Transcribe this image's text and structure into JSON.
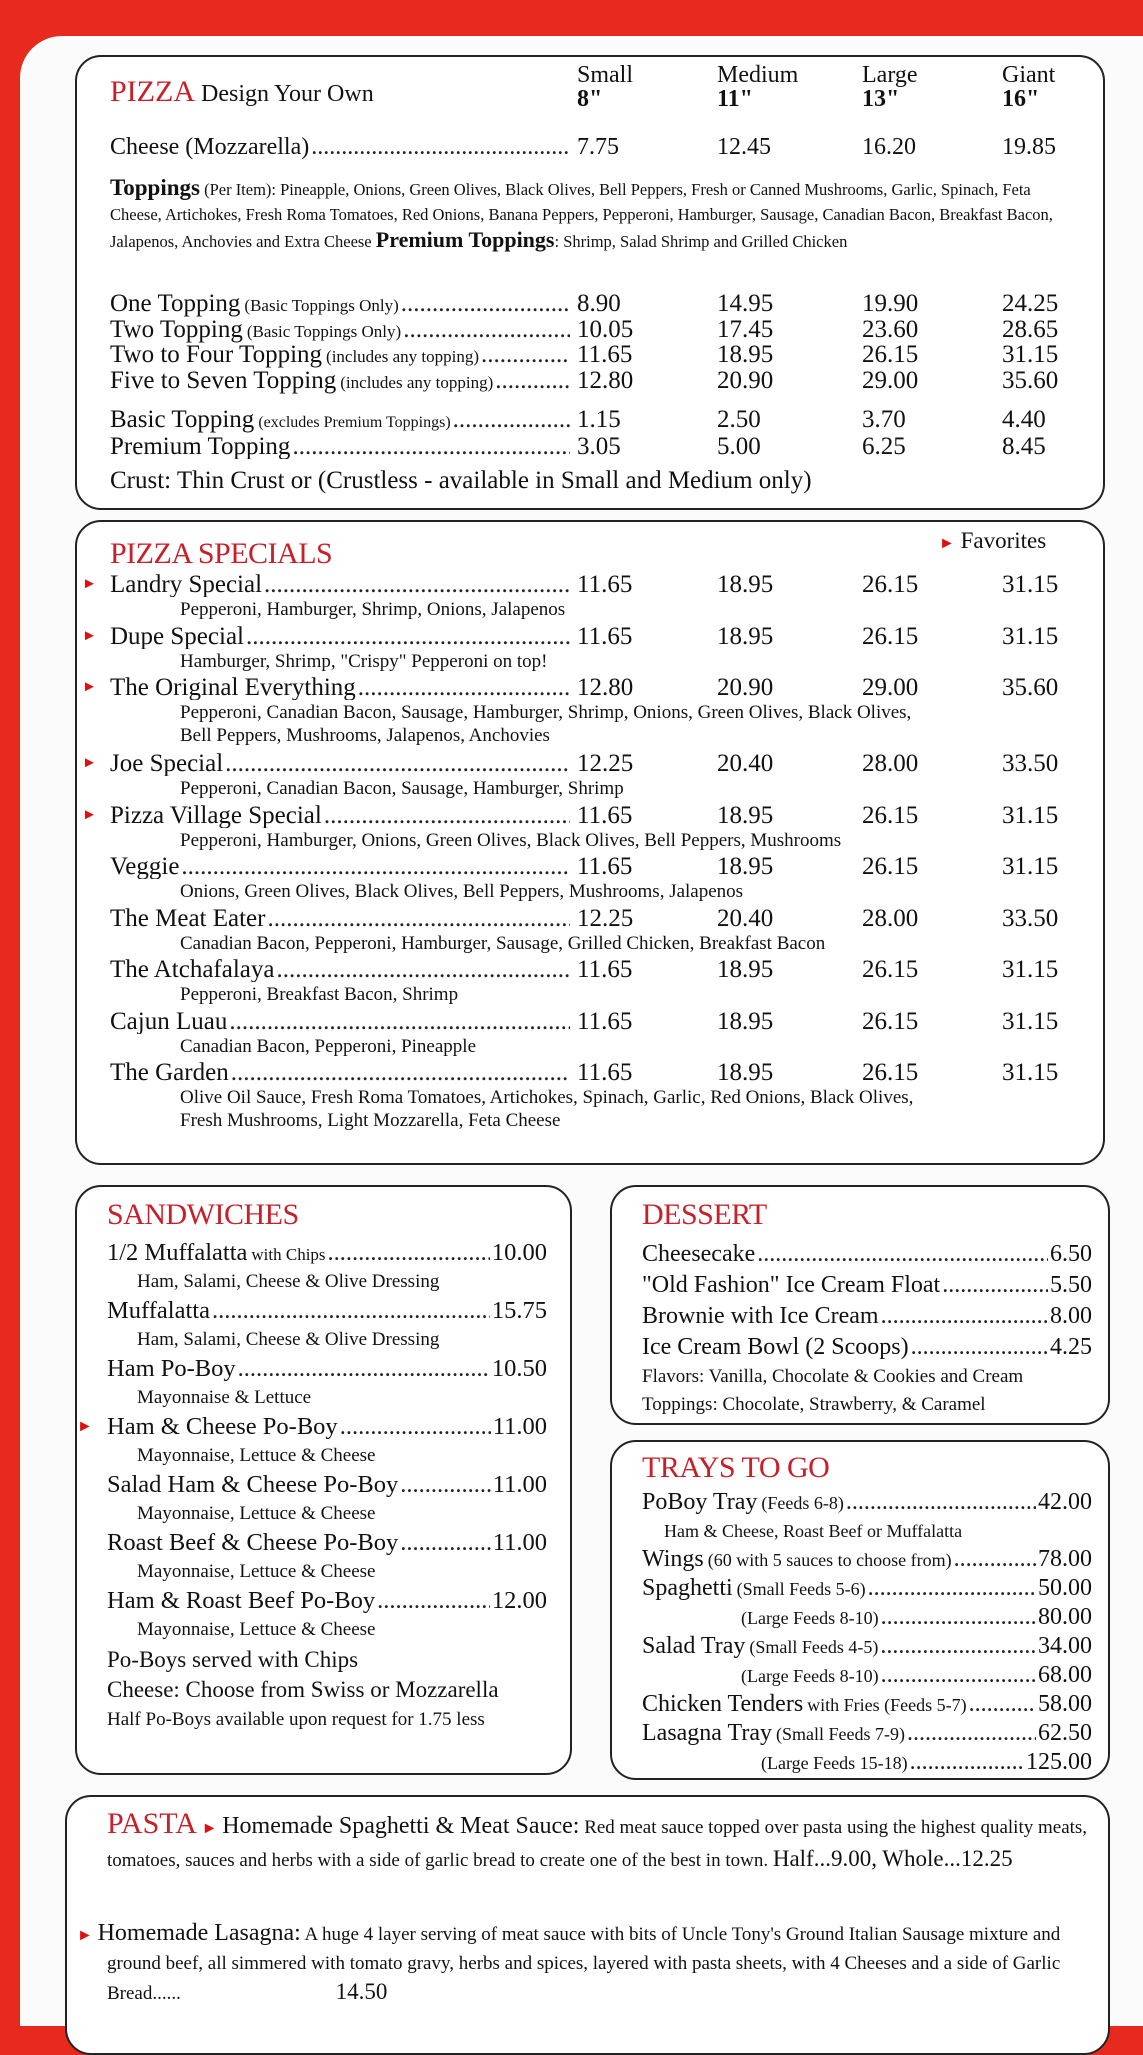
{
  "pizza": {
    "title": "PIZZA",
    "subtitle": "Design Your Own",
    "sizes": [
      {
        "label": "Small",
        "inches": "8\""
      },
      {
        "label": "Medium",
        "inches": "11\""
      },
      {
        "label": "Large",
        "inches": "13\""
      },
      {
        "label": "Giant",
        "inches": "16\""
      }
    ],
    "cheese": {
      "name": "Cheese (Mozzarella)",
      "prices": [
        "7.75",
        "12.45",
        "16.20",
        "19.85"
      ]
    },
    "toppings_label": "Toppings",
    "toppings_text": "(Per Item): Pineapple, Onions, Green Olives, Black Olives, Bell Peppers, Fresh or Canned Mushrooms, Garlic, Spinach, Feta Cheese, Artichokes, Fresh Roma Tomatoes, Red Onions, Banana Peppers, Pepperoni, Hamburger, Sausage, Canadian Bacon, Breakfast Bacon, Jalapenos, Anchovies and Extra Cheese",
    "premium_label": "Premium Toppings",
    "premium_text": ": Shrimp, Salad Shrimp and Grilled Chicken",
    "rows": [
      {
        "name": "One Topping",
        "note": "(Basic Toppings Only)",
        "prices": [
          "8.90",
          "14.95",
          "19.90",
          "24.25"
        ]
      },
      {
        "name": "Two Topping",
        "note": "(Basic Toppings Only)",
        "prices": [
          "10.05",
          "17.45",
          "23.60",
          "28.65"
        ]
      },
      {
        "name": "Two to Four Topping",
        "note": "(includes any topping)",
        "prices": [
          "11.65",
          "18.95",
          "26.15",
          "31.15"
        ]
      },
      {
        "name": "Five to Seven Topping",
        "note": "(includes any topping)",
        "prices": [
          "12.80",
          "20.90",
          "29.00",
          "35.60"
        ]
      }
    ],
    "extra_rows": [
      {
        "name": "Basic Topping",
        "note": "(excludes Premium Toppings)",
        "prices": [
          "1.15",
          "2.50",
          "3.70",
          "4.40"
        ]
      },
      {
        "name": "Premium Topping",
        "note": "",
        "prices": [
          "3.05",
          "5.00",
          "6.25",
          "8.45"
        ]
      }
    ],
    "crust": "Crust: Thin Crust or (Crustless - available in Small and Medium only)"
  },
  "specials": {
    "title": "PIZZA SPECIALS",
    "favorites_label": "Favorites",
    "favorite_color": "#d11a1a",
    "items": [
      {
        "name": "Landry Special",
        "fav": true,
        "prices": [
          "11.65",
          "18.95",
          "26.15",
          "31.15"
        ],
        "desc": [
          "Pepperoni, Hamburger, Shrimp, Onions, Jalapenos"
        ]
      },
      {
        "name": "Dupe Special",
        "fav": true,
        "prices": [
          "11.65",
          "18.95",
          "26.15",
          "31.15"
        ],
        "desc": [
          "Hamburger,  Shrimp, \"Crispy\" Pepperoni on top!"
        ]
      },
      {
        "name": "The Original Everything",
        "fav": true,
        "prices": [
          "12.80",
          "20.90",
          "29.00",
          "35.60"
        ],
        "desc": [
          "Pepperoni, Canadian Bacon, Sausage, Hamburger, Shrimp, Onions, Green Olives, Black Olives,",
          "Bell Peppers, Mushrooms, Jalapenos, Anchovies"
        ]
      },
      {
        "name": "Joe Special",
        "fav": true,
        "prices": [
          "12.25",
          "20.40",
          "28.00",
          "33.50"
        ],
        "desc": [
          "Pepperoni, Canadian Bacon, Sausage, Hamburger, Shrimp"
        ]
      },
      {
        "name": "Pizza Village Special",
        "fav": true,
        "prices": [
          "11.65",
          "18.95",
          "26.15",
          "31.15"
        ],
        "desc": [
          "Pepperoni, Hamburger, Onions, Green Olives, Black Olives, Bell Peppers, Mushrooms"
        ]
      },
      {
        "name": "Veggie",
        "fav": false,
        "prices": [
          "11.65",
          "18.95",
          "26.15",
          "31.15"
        ],
        "desc": [
          "Onions, Green Olives, Black Olives, Bell Peppers, Mushrooms, Jalapenos"
        ]
      },
      {
        "name": "The Meat Eater",
        "fav": false,
        "prices": [
          "12.25",
          "20.40",
          "28.00",
          "33.50"
        ],
        "desc": [
          "Canadian Bacon, Pepperoni, Hamburger, Sausage, Grilled Chicken, Breakfast Bacon"
        ]
      },
      {
        "name": "The Atchafalaya",
        "fav": false,
        "prices": [
          "11.65",
          "18.95",
          "26.15",
          "31.15"
        ],
        "desc": [
          "Pepperoni, Breakfast Bacon, Shrimp"
        ]
      },
      {
        "name": "Cajun Luau",
        "fav": false,
        "prices": [
          "11.65",
          "18.95",
          "26.15",
          "31.15"
        ],
        "desc": [
          "Canadian Bacon, Pepperoni, Pineapple"
        ]
      },
      {
        "name": "The Garden",
        "fav": false,
        "prices": [
          "11.65",
          "18.95",
          "26.15",
          "31.15"
        ],
        "desc": [
          "Olive Oil Sauce, Fresh Roma Tomatoes, Artichokes, Spinach, Garlic, Red Onions, Black Olives,",
          "Fresh Mushrooms, Light Mozzarella, Feta Cheese"
        ]
      }
    ]
  },
  "sandwiches": {
    "title": "SANDWICHES",
    "items": [
      {
        "name": "1/2 Muffalatta",
        "note": "with Chips",
        "price": "10.00",
        "desc": "Ham, Salami, Cheese & Olive Dressing",
        "fav": false
      },
      {
        "name": "Muffalatta",
        "note": "",
        "price": "15.75",
        "desc": "Ham, Salami, Cheese & Olive Dressing",
        "fav": false
      },
      {
        "name": "Ham Po-Boy",
        "note": "",
        "price": "10.50",
        "desc": "Mayonnaise & Lettuce",
        "fav": false
      },
      {
        "name": "Ham & Cheese Po-Boy",
        "note": "",
        "price": "11.00",
        "desc": "Mayonnaise, Lettuce & Cheese",
        "fav": true
      },
      {
        "name": "Salad Ham & Cheese Po-Boy",
        "note": "",
        "price": "11.00",
        "desc": "Mayonnaise, Lettuce & Cheese",
        "fav": false
      },
      {
        "name": "Roast Beef & Cheese Po-Boy",
        "note": "",
        "price": "11.00",
        "desc": "Mayonnaise, Lettuce & Cheese",
        "fav": false
      },
      {
        "name": "Ham & Roast Beef Po-Boy",
        "note": "",
        "price": "12.00",
        "desc": "Mayonnaise, Lettuce & Cheese",
        "fav": false
      }
    ],
    "footer": [
      "Po-Boys served with Chips",
      "Cheese: Choose from Swiss or Mozzarella",
      "Half Po-Boys available upon request for 1.75 less"
    ]
  },
  "dessert": {
    "title": "DESSERT",
    "items": [
      {
        "name": "Cheesecake",
        "price": "6.50"
      },
      {
        "name": "\"Old Fashion\" Ice Cream Float",
        "price": "5.50"
      },
      {
        "name": "Brownie with Ice Cream",
        "price": "8.00"
      },
      {
        "name": "Ice Cream Bowl (2 Scoops)",
        "price": "4.25"
      }
    ],
    "notes": [
      "Flavors: Vanilla, Chocolate & Cookies and Cream",
      "Toppings: Chocolate, Strawberry, & Caramel"
    ]
  },
  "trays": {
    "title": "TRAYS TO GO",
    "items": [
      {
        "name": "PoBoy Tray",
        "note": "(Feeds 6-8)",
        "price": "42.00",
        "desc": "Ham & Cheese, Roast Beef or Muffalatta"
      },
      {
        "name": "Wings",
        "note": "(60 with 5 sauces to choose from)",
        "price": "78.00"
      },
      {
        "name": "Spaghetti",
        "note": "(Small Feeds 5-6)",
        "price": "50.00"
      },
      {
        "name": "",
        "note": "(Large Feeds 8-10)",
        "price": "80.00"
      },
      {
        "name": "Salad Tray",
        "note": "(Small Feeds 4-5)",
        "price": "34.00"
      },
      {
        "name": "",
        "note": "(Large Feeds 8-10)",
        "price": "68.00"
      },
      {
        "name": "Chicken Tenders",
        "note": "with Fries (Feeds 5-7)",
        "price": "58.00"
      },
      {
        "name": "Lasagna Tray",
        "note": "(Small Feeds 7-9)",
        "price": "62.50"
      },
      {
        "name": "",
        "note": "(Large Feeds 15-18)",
        "price": "125.00"
      }
    ]
  },
  "pasta": {
    "title": "PASTA",
    "spaghetti_name": "Homemade Spaghetti & Meat Sauce:",
    "spaghetti_desc": "Red meat sauce topped over pasta using the highest quality meats, tomatoes, sauces and herbs with a side of garlic bread to create one of the best in town.",
    "spaghetti_prices": "Half...9.00, Whole...12.25",
    "lasagna_name": "Homemade Lasagna:",
    "lasagna_desc": "A huge 4 layer serving of meat sauce with bits of Uncle Tony's Ground Italian Sausage mixture and ground beef, all simmered with tomato gravy, herbs and spices, layered with pasta sheets, with 4 Cheeses and a side of Garlic Bread",
    "lasagna_price": "14.50"
  }
}
